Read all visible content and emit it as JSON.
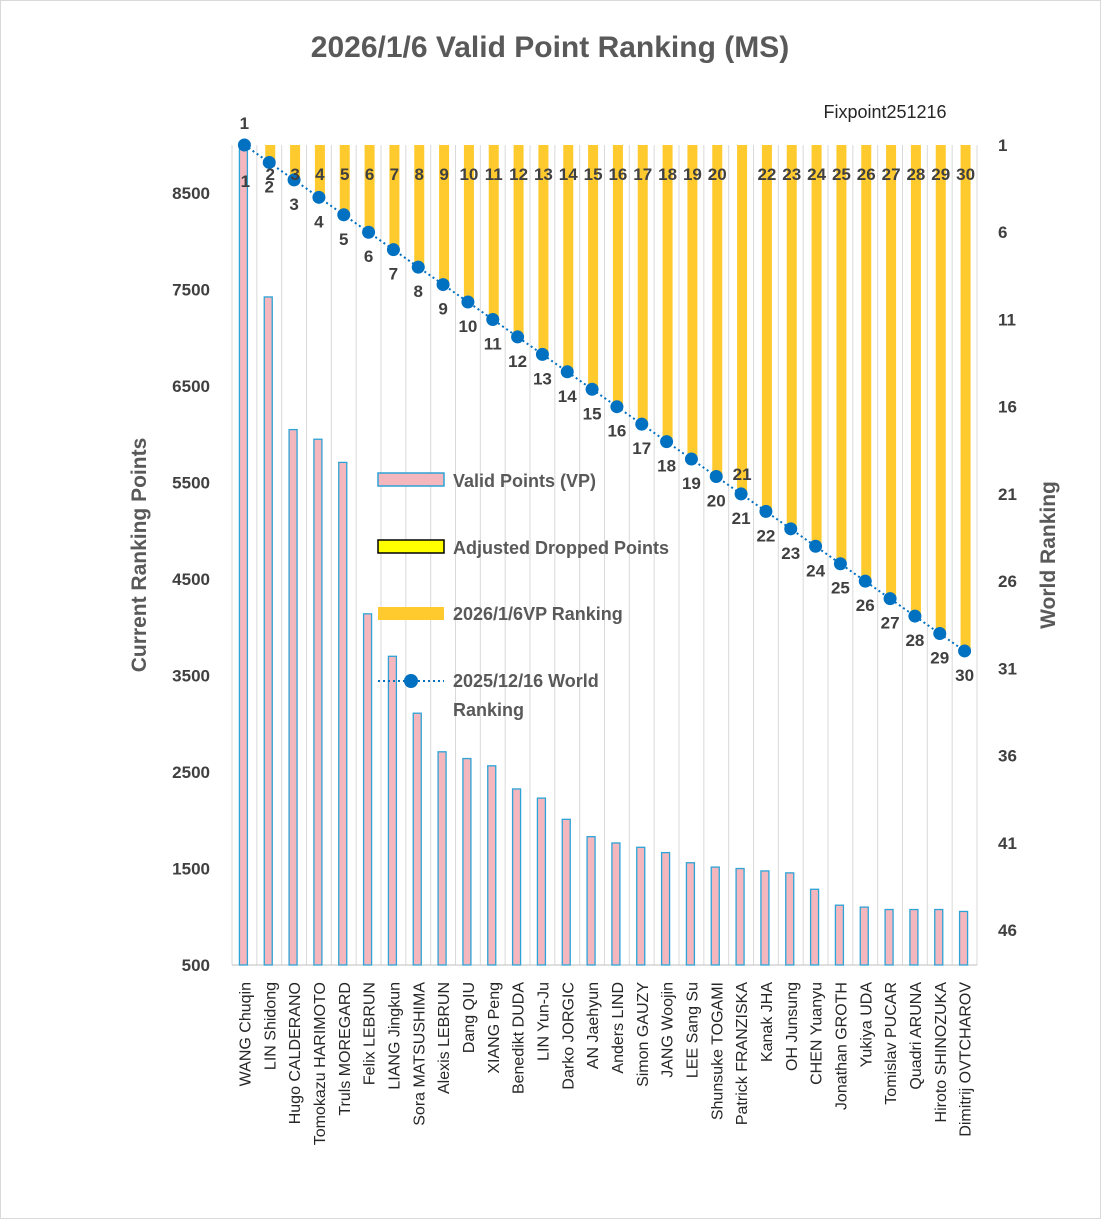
{
  "chart_data": {
    "type": "bar",
    "title": "2026/1/6  Valid Point Ranking (MS)",
    "note": "Fixpoint251216",
    "ylabel": "Current Ranking Points",
    "y2label": "World Ranking",
    "ylim": [
      500,
      9000
    ],
    "yticks": [
      "8500",
      "7500",
      "6500",
      "5500",
      "4500",
      "3500",
      "2500",
      "1500",
      "500"
    ],
    "y2lim": [
      1,
      48
    ],
    "y2ticks": [
      "1",
      "6",
      "11",
      "16",
      "21",
      "26",
      "31",
      "36",
      "41",
      "46"
    ],
    "categories": [
      "WANG Chuqin",
      "LIN Shidong",
      "Hugo CALDERANO",
      "Tomokazu HARIMOTO",
      "Truls MOREGARD",
      "Felix LEBRUN",
      "LIANG Jingkun",
      "Sora MATSUSHIMA",
      "Alexis LEBRUN",
      "Dang QIU",
      "XIANG Peng",
      "Benedikt DUDA",
      "LIN Yun-Ju",
      "Darko JORGIC",
      "AN Jaehyun",
      "Anders LIND",
      "Simon GAUZY",
      "JANG Woojin",
      "LEE Sang Su",
      "Shunsuke TOGAMI",
      "Patrick FRANZISKA",
      "Kanak JHA",
      "OH Junsung",
      "CHEN Yuanyu",
      "Jonathan GROTH",
      "Yukiya UDA",
      "Tomislav PUCAR",
      "Quadri ARUNA",
      "Hiroto SHINOZUKA",
      "Dimitrij OVTCHAROV"
    ],
    "series": [
      {
        "name": "Valid Points (VP)",
        "type": "bar",
        "color": "#F4B7BE",
        "edge": "#2EA3D6",
        "values": [
          9000,
          7425,
          6050,
          5950,
          5710,
          4140,
          3700,
          3110,
          2710,
          2640,
          2565,
          2325,
          2230,
          2010,
          1830,
          1765,
          1720,
          1665,
          1560,
          1515,
          1500,
          1475,
          1455,
          1285,
          1120,
          1100,
          1075,
          1075,
          1075,
          1055
        ]
      },
      {
        "name": "Adjusted Dropped Points",
        "type": "bar",
        "color": "#FFFF00",
        "edge": "#000000",
        "values": [
          0,
          0,
          0,
          0,
          0,
          0,
          0,
          0,
          0,
          0,
          0,
          0,
          0,
          0,
          0,
          0,
          0,
          0,
          0,
          0,
          0,
          0,
          0,
          0,
          0,
          0,
          0,
          0,
          0,
          0
        ]
      },
      {
        "name": "2026/1/6VP Ranking",
        "type": "bar",
        "axis": "right",
        "color": "#FFCA2E",
        "values": [
          1,
          2,
          3,
          4,
          5,
          6,
          7,
          8,
          9,
          10,
          11,
          12,
          13,
          14,
          15,
          16,
          17,
          18,
          19,
          20,
          21,
          22,
          23,
          24,
          25,
          26,
          27,
          28,
          29,
          30
        ],
        "labels": [
          "1",
          "2",
          "3",
          "4",
          "5",
          "6",
          "7",
          "8",
          "9",
          "10",
          "11",
          "12",
          "13",
          "14",
          "15",
          "16",
          "17",
          "18",
          "19",
          "20",
          "21",
          "22",
          "23",
          "24",
          "25",
          "26",
          "27",
          "28",
          "29",
          "30"
        ]
      },
      {
        "name": "2025/12/16 World Ranking",
        "type": "line",
        "axis": "right",
        "color": "#0070C0",
        "values": [
          1,
          2,
          3,
          4,
          5,
          6,
          7,
          8,
          9,
          10,
          11,
          12,
          13,
          14,
          15,
          16,
          17,
          18,
          19,
          20,
          21,
          22,
          23,
          24,
          25,
          26,
          27,
          28,
          29,
          30
        ],
        "labels": [
          "1",
          "2",
          "3",
          "4",
          "5",
          "6",
          "7",
          "8",
          "9",
          "10",
          "11",
          "12",
          "13",
          "14",
          "15",
          "16",
          "17",
          "18",
          "19",
          "20",
          "21",
          "22",
          "23",
          "24",
          "25",
          "26",
          "27",
          "28",
          "29",
          "30"
        ]
      }
    ],
    "grid": true,
    "legend": "center"
  }
}
